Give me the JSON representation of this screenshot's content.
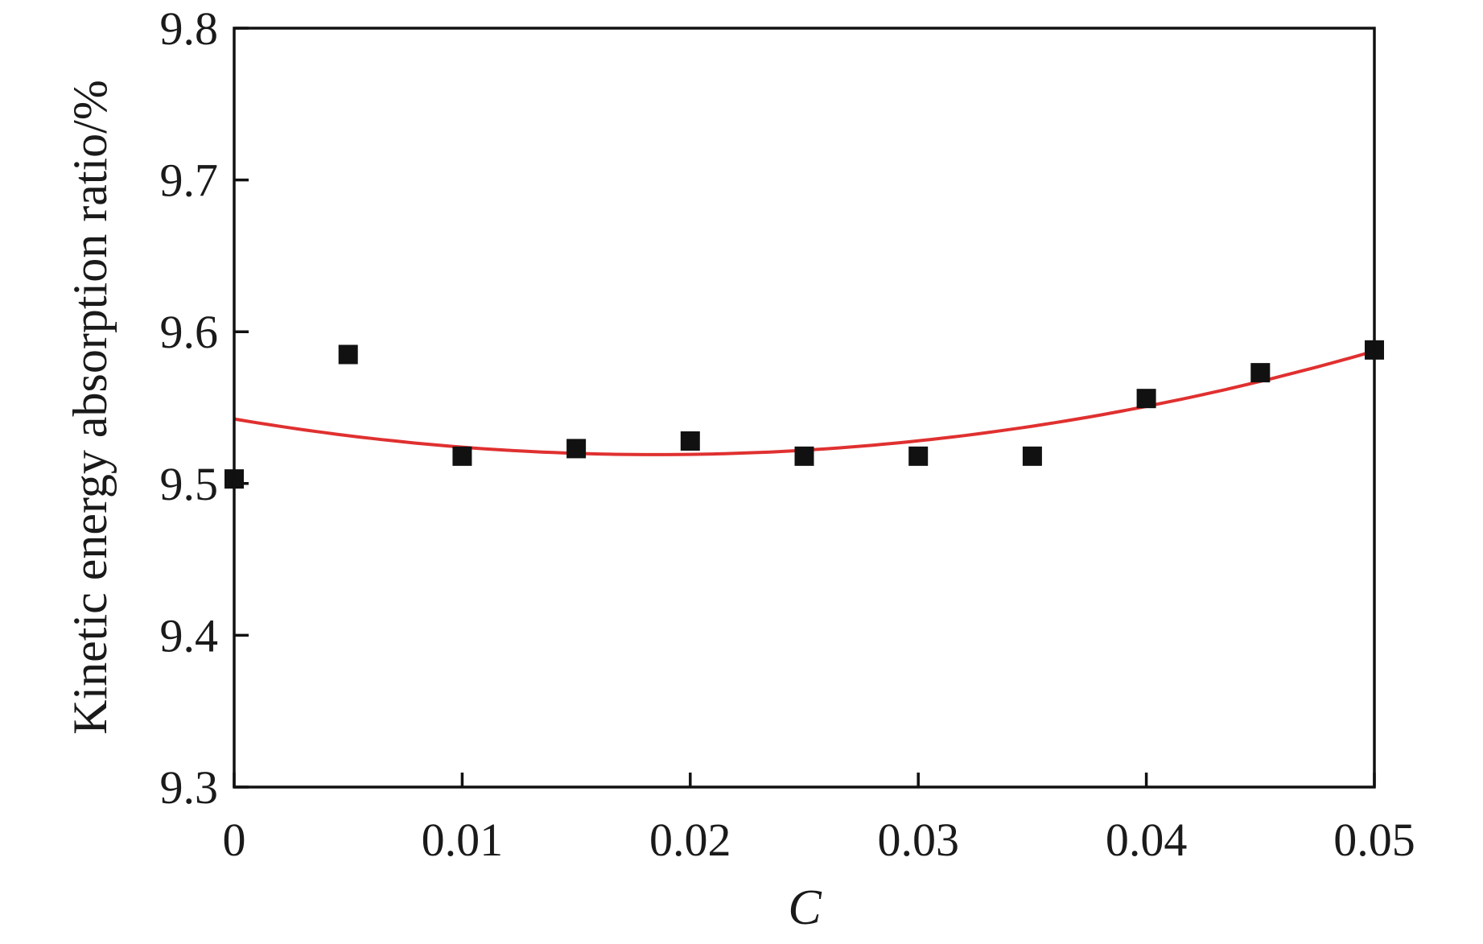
{
  "chart_data": {
    "type": "scatter",
    "title": "",
    "xlabel": "C",
    "ylabel": "Kinetic energy absorption ratio/%",
    "xlim": [
      0,
      0.05
    ],
    "ylim": [
      9.3,
      9.8
    ],
    "xticks": [
      "0",
      "0.01",
      "0.02",
      "0.03",
      "0.04",
      "0.05"
    ],
    "yticks": [
      "9.3",
      "9.4",
      "9.5",
      "9.6",
      "9.7",
      "9.8"
    ],
    "grid": false,
    "legend": "none",
    "series": [
      {
        "type": "scatter",
        "marker": "square",
        "color": "#111111",
        "x": [
          0,
          0.005,
          0.01,
          0.015,
          0.02,
          0.025,
          0.03,
          0.035,
          0.04,
          0.045,
          0.05
        ],
        "y": [
          9.503,
          9.585,
          9.518,
          9.523,
          9.528,
          9.518,
          9.518,
          9.518,
          9.556,
          9.573,
          9.588
        ]
      },
      {
        "type": "line",
        "fit": "quadratic",
        "color": "#e03030",
        "coefficients": [
          9.5425,
          -2.54,
          68.7
        ]
      }
    ]
  }
}
